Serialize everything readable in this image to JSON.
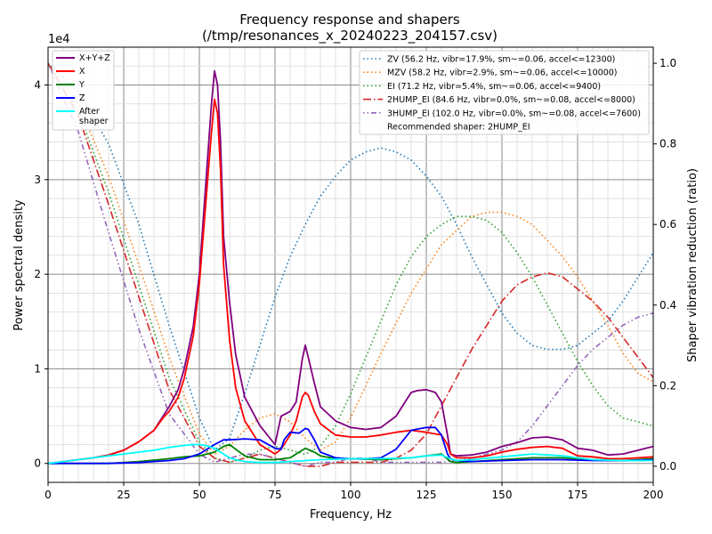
{
  "chart_data": {
    "type": "line",
    "title": "Frequency response and shapers",
    "subtitle": "(/tmp/resonances_x_20240223_204157.csv)",
    "xlabel": "Frequency, Hz",
    "ylabel": "Power spectral density",
    "y2label": "Shaper vibration reduction (ratio)",
    "y_scale_label": "1e4",
    "xlim": [
      0,
      200
    ],
    "ylim": [
      -0.2,
      4.4
    ],
    "y2lim": [
      -0.04,
      1.04
    ],
    "xticks": [
      0,
      25,
      50,
      75,
      100,
      125,
      150,
      175,
      200
    ],
    "xtick_labels": [
      "0",
      "25",
      "50",
      "75",
      "100",
      "125",
      "150",
      "175",
      "200"
    ],
    "yticks": [
      0,
      1,
      2,
      3,
      4
    ],
    "ytick_labels": [
      "0",
      "1",
      "2",
      "3",
      "4"
    ],
    "y2ticks": [
      0,
      0.2,
      0.4,
      0.6,
      0.8,
      1.0
    ],
    "y2tick_labels": [
      "0.0",
      "0.2",
      "0.4",
      "0.6",
      "0.8",
      "1.0"
    ],
    "grid": true,
    "minor_grid": true,
    "legend_left_placement": "top-left",
    "legend_right_placement": "top-right",
    "recommended_text": "Recommended shaper: 2HUMP_EI",
    "psd_series": [
      {
        "name": "X+Y+Z",
        "color": "#800080",
        "x": [
          0,
          5,
          10,
          15,
          20,
          25,
          30,
          35,
          38,
          40,
          43,
          45,
          48,
          50,
          52,
          54,
          55,
          56,
          57,
          58,
          60,
          62,
          65,
          70,
          75,
          77,
          80,
          82,
          84,
          85,
          86,
          88,
          90,
          95,
          100,
          105,
          110,
          115,
          118,
          120,
          122,
          125,
          128,
          130,
          132,
          133,
          135,
          140,
          145,
          150,
          155,
          160,
          165,
          170,
          175,
          180,
          185,
          190,
          195,
          200
        ],
        "y": [
          0,
          0.02,
          0.04,
          0.06,
          0.09,
          0.14,
          0.23,
          0.35,
          0.5,
          0.6,
          0.78,
          1.0,
          1.45,
          2.0,
          2.9,
          3.8,
          4.15,
          4.0,
          3.4,
          2.4,
          1.7,
          1.15,
          0.7,
          0.4,
          0.2,
          0.5,
          0.55,
          0.65,
          1.1,
          1.25,
          1.12,
          0.85,
          0.6,
          0.45,
          0.38,
          0.36,
          0.38,
          0.5,
          0.65,
          0.75,
          0.77,
          0.78,
          0.75,
          0.65,
          0.3,
          0.1,
          0.08,
          0.09,
          0.12,
          0.18,
          0.22,
          0.27,
          0.28,
          0.25,
          0.16,
          0.14,
          0.09,
          0.1,
          0.14,
          0.18
        ]
      },
      {
        "name": "X",
        "color": "#ff0000",
        "x": [
          0,
          5,
          10,
          15,
          20,
          25,
          30,
          35,
          38,
          40,
          43,
          45,
          48,
          50,
          52,
          54,
          55,
          56,
          57,
          58,
          60,
          62,
          65,
          70,
          75,
          77,
          80,
          82,
          84,
          85,
          86,
          88,
          90,
          95,
          100,
          105,
          110,
          115,
          120,
          125,
          130,
          132,
          133,
          135,
          140,
          145,
          150,
          155,
          160,
          165,
          170,
          175,
          180,
          185,
          190,
          195,
          200
        ],
        "y": [
          0,
          0.02,
          0.04,
          0.06,
          0.09,
          0.14,
          0.23,
          0.35,
          0.48,
          0.55,
          0.7,
          0.9,
          1.35,
          1.9,
          2.7,
          3.5,
          3.85,
          3.7,
          3.1,
          2.1,
          1.3,
          0.8,
          0.45,
          0.2,
          0.1,
          0.15,
          0.3,
          0.45,
          0.7,
          0.75,
          0.72,
          0.55,
          0.42,
          0.3,
          0.28,
          0.28,
          0.3,
          0.33,
          0.35,
          0.33,
          0.3,
          0.2,
          0.1,
          0.06,
          0.06,
          0.08,
          0.12,
          0.15,
          0.17,
          0.18,
          0.16,
          0.08,
          0.07,
          0.05,
          0.05,
          0.06,
          0.07
        ]
      },
      {
        "name": "Y",
        "color": "#008000",
        "x": [
          0,
          10,
          20,
          30,
          40,
          45,
          50,
          55,
          58,
          60,
          62,
          65,
          70,
          75,
          80,
          85,
          88,
          90,
          95,
          100,
          110,
          120,
          125,
          130,
          133,
          135,
          140,
          150,
          160,
          170,
          180,
          190,
          200
        ],
        "y": [
          0,
          0,
          0,
          0.02,
          0.05,
          0.07,
          0.08,
          0.12,
          0.18,
          0.2,
          0.15,
          0.08,
          0.04,
          0.04,
          0.06,
          0.16,
          0.12,
          0.08,
          0.05,
          0.05,
          0.04,
          0.06,
          0.08,
          0.1,
          0.02,
          0.01,
          0.02,
          0.04,
          0.06,
          0.06,
          0.04,
          0.03,
          0.05
        ]
      },
      {
        "name": "Z",
        "color": "#0000ff",
        "x": [
          0,
          10,
          20,
          30,
          40,
          45,
          50,
          55,
          58,
          60,
          65,
          70,
          75,
          77,
          78,
          80,
          83,
          85,
          86,
          88,
          90,
          95,
          100,
          105,
          110,
          115,
          120,
          125,
          128,
          130,
          132,
          133,
          135,
          140,
          150,
          160,
          170,
          180,
          190,
          200
        ],
        "y": [
          0,
          0,
          0,
          0.01,
          0.03,
          0.05,
          0.1,
          0.2,
          0.25,
          0.25,
          0.26,
          0.25,
          0.16,
          0.15,
          0.25,
          0.33,
          0.32,
          0.37,
          0.36,
          0.25,
          0.12,
          0.06,
          0.05,
          0.05,
          0.06,
          0.15,
          0.35,
          0.38,
          0.38,
          0.3,
          0.1,
          0.05,
          0.03,
          0.02,
          0.03,
          0.04,
          0.04,
          0.03,
          0.03,
          0.04
        ]
      },
      {
        "name": "After\nshaper",
        "color": "#00ffff",
        "x": [
          0,
          5,
          10,
          15,
          20,
          25,
          30,
          35,
          40,
          45,
          48,
          50,
          52,
          55,
          58,
          60,
          62,
          65,
          70,
          75,
          80,
          85,
          90,
          100,
          110,
          120,
          125,
          130,
          133,
          135,
          140,
          150,
          160,
          170,
          180,
          190,
          200
        ],
        "y": [
          0,
          0.02,
          0.04,
          0.06,
          0.08,
          0.1,
          0.12,
          0.14,
          0.17,
          0.19,
          0.2,
          0.2,
          0.19,
          0.16,
          0.1,
          0.06,
          0.04,
          0.02,
          0.01,
          0.01,
          0.02,
          0.03,
          0.04,
          0.05,
          0.05,
          0.06,
          0.08,
          0.09,
          0.05,
          0.03,
          0.04,
          0.07,
          0.1,
          0.08,
          0.04,
          0.03,
          0.03
        ]
      }
    ],
    "shaper_series": [
      {
        "name": "ZV (56.2 Hz, vibr=17.9%, sm~=0.06, accel<=12300)",
        "color": "#1f77b4",
        "dash": "dotted",
        "x": [
          0,
          10,
          20,
          30,
          40,
          50,
          55,
          60,
          65,
          70,
          75,
          80,
          85,
          90,
          95,
          100,
          105,
          110,
          115,
          120,
          125,
          130,
          135,
          140,
          145,
          150,
          155,
          160,
          165,
          170,
          175,
          180,
          185,
          190,
          195,
          200
        ],
        "y": [
          1.0,
          0.93,
          0.8,
          0.6,
          0.35,
          0.12,
          0.04,
          0.07,
          0.18,
          0.3,
          0.42,
          0.52,
          0.6,
          0.67,
          0.72,
          0.76,
          0.78,
          0.79,
          0.78,
          0.76,
          0.72,
          0.67,
          0.6,
          0.52,
          0.45,
          0.38,
          0.33,
          0.3,
          0.29,
          0.29,
          0.3,
          0.33,
          0.36,
          0.41,
          0.47,
          0.53
        ]
      },
      {
        "name": "MZV (58.2 Hz, vibr=2.9%, sm~=0.06, accel<=10000)",
        "color": "#ff7f0e",
        "dash": "dotted",
        "x": [
          0,
          10,
          20,
          30,
          40,
          50,
          55,
          60,
          65,
          70,
          75,
          80,
          85,
          90,
          95,
          100,
          110,
          120,
          130,
          140,
          145,
          150,
          155,
          160,
          165,
          170,
          175,
          180,
          185,
          190,
          195,
          200
        ],
        "y": [
          1.0,
          0.9,
          0.72,
          0.5,
          0.27,
          0.08,
          0.03,
          0.05,
          0.09,
          0.12,
          0.13,
          0.11,
          0.07,
          0.04,
          0.06,
          0.12,
          0.28,
          0.43,
          0.55,
          0.62,
          0.63,
          0.63,
          0.62,
          0.6,
          0.56,
          0.52,
          0.47,
          0.41,
          0.35,
          0.28,
          0.23,
          0.21
        ]
      },
      {
        "name": "EI (71.2 Hz, vibr=5.4%, sm~=0.06, accel<=9400)",
        "color": "#2ca02c",
        "dash": "dotted",
        "x": [
          0,
          10,
          20,
          30,
          40,
          50,
          55,
          60,
          65,
          70,
          75,
          80,
          85,
          90,
          95,
          100,
          105,
          110,
          115,
          120,
          125,
          130,
          135,
          140,
          145,
          150,
          155,
          160,
          165,
          170,
          175,
          180,
          185,
          190,
          195,
          200
        ],
        "y": [
          1.0,
          0.88,
          0.68,
          0.45,
          0.22,
          0.06,
          0.02,
          0.01,
          0.02,
          0.04,
          0.05,
          0.04,
          0.03,
          0.05,
          0.1,
          0.18,
          0.27,
          0.36,
          0.45,
          0.52,
          0.57,
          0.6,
          0.62,
          0.62,
          0.61,
          0.58,
          0.53,
          0.47,
          0.4,
          0.33,
          0.26,
          0.2,
          0.15,
          0.12,
          0.11,
          0.1
        ]
      },
      {
        "name": "2HUMP_EI (84.6 Hz, vibr=0.0%, sm~=0.08, accel<=8000)",
        "color": "#d62728",
        "dash": "dashdot",
        "x": [
          0,
          10,
          20,
          30,
          40,
          50,
          55,
          60,
          65,
          70,
          75,
          80,
          85,
          90,
          95,
          100,
          105,
          110,
          115,
          120,
          125,
          130,
          135,
          140,
          145,
          150,
          155,
          160,
          165,
          170,
          175,
          180,
          185,
          190,
          195,
          200
        ],
        "y": [
          1.0,
          0.87,
          0.65,
          0.42,
          0.19,
          0.05,
          0.02,
          0.01,
          0.02,
          0.03,
          0.02,
          0.01,
          0.0,
          0.0,
          0.01,
          0.01,
          0.01,
          0.01,
          0.02,
          0.04,
          0.08,
          0.15,
          0.22,
          0.29,
          0.35,
          0.41,
          0.45,
          0.47,
          0.48,
          0.47,
          0.44,
          0.41,
          0.37,
          0.32,
          0.27,
          0.22
        ]
      },
      {
        "name": "3HUMP_EI (102.0 Hz, vibr=0.0%, sm~=0.08, accel<=7600)",
        "color": "#9467bd",
        "dash": "dashdot-dotted",
        "x": [
          0,
          10,
          20,
          30,
          40,
          50,
          55,
          60,
          65,
          70,
          75,
          80,
          85,
          90,
          95,
          100,
          105,
          110,
          115,
          120,
          130,
          140,
          150,
          155,
          160,
          165,
          170,
          175,
          180,
          185,
          190,
          195,
          200
        ],
        "y": [
          1.0,
          0.83,
          0.58,
          0.34,
          0.13,
          0.03,
          0.01,
          0.02,
          0.03,
          0.03,
          0.02,
          0.01,
          0.0,
          0.01,
          0.01,
          0.02,
          0.02,
          0.01,
          0.01,
          0.01,
          0.01,
          0.02,
          0.04,
          0.06,
          0.1,
          0.15,
          0.2,
          0.25,
          0.29,
          0.32,
          0.35,
          0.37,
          0.38
        ]
      }
    ]
  }
}
